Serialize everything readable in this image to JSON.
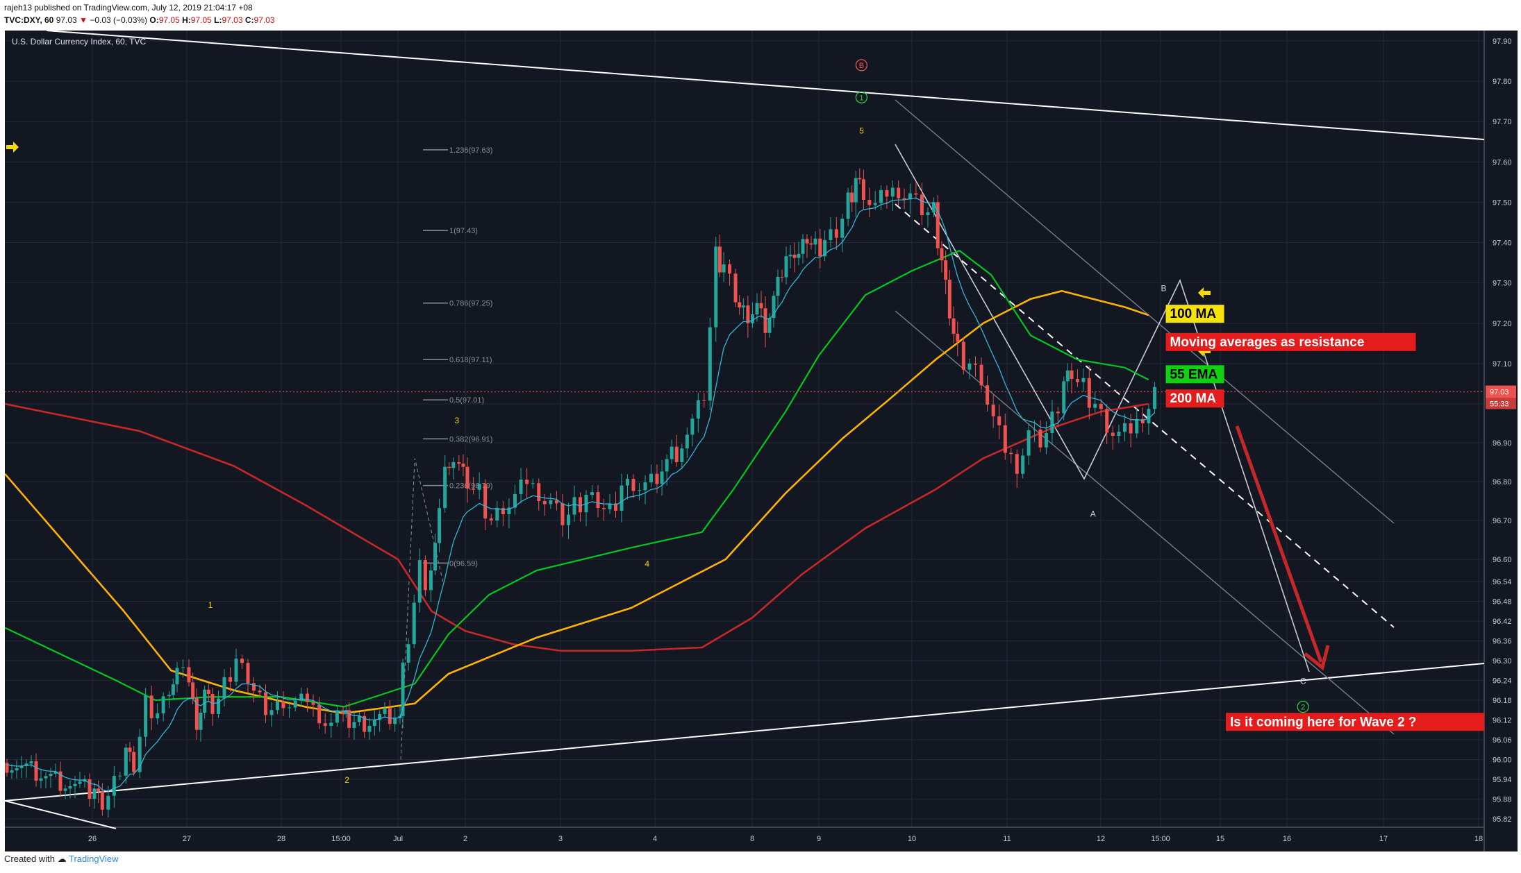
{
  "header": {
    "publisher_line": "rajeh13 published on TradingView.com, July 12, 2019 21:04:17 +08",
    "ticker": "TVC:DXY, 60",
    "last": "97.03",
    "change_arrow": "▼",
    "change": "−0.03 (−0.03%)",
    "o_label": "O:",
    "o_value": "97.05",
    "h_label": "H:",
    "h_value": "97.05",
    "l_label": "L:",
    "l_value": "97.03",
    "c_label": "C:",
    "c_value": "97.03"
  },
  "footer": {
    "created_with": "Created with",
    "brand": "TradingView"
  },
  "chart_data": {
    "type": "candlestick",
    "title": "U.S. Dollar Currency Index, 60, TVC",
    "ylim": [
      95.78,
      97.95
    ],
    "y_ticks": [
      "97.90",
      "97.80",
      "97.70",
      "97.60",
      "97.50",
      "97.40",
      "97.30",
      "97.20",
      "97.10",
      "97.00",
      "96.90",
      "96.80",
      "96.70",
      "96.60",
      "96.54",
      "96.48",
      "96.42",
      "96.36",
      "96.30",
      "96.24",
      "96.18",
      "96.12",
      "96.06",
      "96.00",
      "95.94",
      "95.88",
      "95.82"
    ],
    "x_ticks": [
      "26",
      "27",
      "28",
      "15:00",
      "Jul",
      "2",
      "3",
      "4",
      "8",
      "9",
      "10",
      "11",
      "12",
      "15:00",
      "15",
      "16",
      "17",
      "18"
    ],
    "price_label": "97.03",
    "countdown_label": "55:33",
    "colors": {
      "background": "#131722",
      "up": "#26a69a",
      "down": "#ef5350",
      "ma100": "#ffb300",
      "ema55": "#00c81e",
      "ma200": "#c62828",
      "ema_fast": "#33b5d6",
      "trendline": "#ffffff",
      "arrow": "#c62828"
    },
    "close_path": [
      [
        "06-25 20:00",
        95.99
      ],
      [
        "06-26 00:00",
        95.9
      ],
      [
        "06-26 02:00",
        95.86
      ],
      [
        "06-26 05:00",
        95.92
      ],
      [
        "06-26 08:00",
        96.03
      ],
      [
        "06-26 10:00",
        95.98
      ],
      [
        "06-26 13:00",
        96.17
      ],
      [
        "06-26 16:00",
        96.14
      ],
      [
        "06-26 19:00",
        96.22
      ],
      [
        "06-26 21:00",
        96.26
      ],
      [
        "06-27 00:00",
        96.24
      ],
      [
        "06-27 02:00",
        96.12
      ],
      [
        "06-27 04:00",
        96.2
      ],
      [
        "06-27 06:00",
        96.15
      ],
      [
        "06-27 09:00",
        96.22
      ],
      [
        "06-27 12:00",
        96.3
      ],
      [
        "06-27 15:00",
        96.25
      ],
      [
        "06-27 18:00",
        96.18
      ],
      [
        "06-27 21:00",
        96.15
      ],
      [
        "06-28 00:00",
        96.18
      ],
      [
        "06-28 03:00",
        96.16
      ],
      [
        "06-28 06:00",
        96.18
      ],
      [
        "06-28 09:00",
        96.14
      ],
      [
        "06-28 12:00",
        96.1
      ],
      [
        "06-28 15:00",
        96.15
      ],
      [
        "06-28 18:00",
        96.12
      ],
      [
        "06-28 21:00",
        96.09
      ],
      [
        "07-01 00:00",
        96.15
      ],
      [
        "07-01 01:00",
        96.27
      ],
      [
        "07-01 03:00",
        96.35
      ],
      [
        "07-01 05:00",
        96.5
      ],
      [
        "07-01 07:00",
        96.58
      ],
      [
        "07-01 09:00",
        96.52
      ],
      [
        "07-01 11:00",
        96.6
      ],
      [
        "07-01 14:00",
        96.72
      ],
      [
        "07-01 16:00",
        96.85
      ],
      [
        "07-01 19:00",
        96.82
      ],
      [
        "07-01 21:00",
        96.84
      ],
      [
        "07-02 00:00",
        96.8
      ],
      [
        "07-02 03:00",
        96.77
      ],
      [
        "07-02 06:00",
        96.7
      ],
      [
        "07-02 09:00",
        96.74
      ],
      [
        "07-02 12:00",
        96.75
      ],
      [
        "07-02 15:00",
        96.8
      ],
      [
        "07-02 18:00",
        96.78
      ],
      [
        "07-02 21:00",
        96.74
      ],
      [
        "07-03 00:00",
        96.7
      ],
      [
        "07-03 03:00",
        96.73
      ],
      [
        "07-03 06:00",
        96.76
      ],
      [
        "07-03 09:00",
        96.75
      ],
      [
        "07-03 12:00",
        96.72
      ],
      [
        "07-03 15:00",
        96.79
      ],
      [
        "07-03 18:00",
        96.8
      ],
      [
        "07-03 21:00",
        96.78
      ],
      [
        "07-04 00:00",
        96.8
      ],
      [
        "07-04 05:00",
        96.88
      ],
      [
        "07-04 09:00",
        96.95
      ],
      [
        "07-04 12:00",
        97.02
      ],
      [
        "07-04 15:00",
        97.36
      ],
      [
        "07-04 17:00",
        97.34
      ],
      [
        "07-04 20:00",
        97.27
      ],
      [
        "07-04 22:00",
        97.22
      ],
      [
        "07-08 01:00",
        97.25
      ],
      [
        "07-08 04:00",
        97.2
      ],
      [
        "07-08 07:00",
        97.25
      ],
      [
        "07-08 10:00",
        97.32
      ],
      [
        "07-08 13:00",
        97.4
      ],
      [
        "07-08 16:00",
        97.36
      ],
      [
        "07-08 19:00",
        97.41
      ],
      [
        "07-08 22:00",
        97.38
      ],
      [
        "07-09 01:00",
        97.4
      ],
      [
        "07-09 04:00",
        97.43
      ],
      [
        "07-09 07:00",
        97.5
      ],
      [
        "07-09 09:00",
        97.56
      ],
      [
        "07-09 11:00",
        97.53
      ],
      [
        "07-09 14:00",
        97.48
      ],
      [
        "07-09 17:00",
        97.52
      ],
      [
        "07-09 20:00",
        97.54
      ],
      [
        "07-09 23:00",
        97.51
      ],
      [
        "07-10 02:00",
        97.48
      ],
      [
        "07-10 05:00",
        97.47
      ],
      [
        "07-10 07:00",
        97.35
      ],
      [
        "07-10 09:00",
        97.23
      ],
      [
        "07-10 11:00",
        97.13
      ],
      [
        "07-10 14:00",
        97.1
      ],
      [
        "07-10 17:00",
        97.07
      ],
      [
        "07-10 20:00",
        96.95
      ],
      [
        "07-10 23:00",
        96.88
      ],
      [
        "07-11 02:00",
        96.85
      ],
      [
        "07-11 05:00",
        96.92
      ],
      [
        "07-11 08:00",
        96.9
      ],
      [
        "07-11 11:00",
        96.95
      ],
      [
        "07-11 14:00",
        97.05
      ],
      [
        "07-11 16:00",
        97.08
      ],
      [
        "07-11 19:00",
        97.04
      ],
      [
        "07-11 22:00",
        97.0
      ],
      [
        "07-12 01:00",
        96.95
      ],
      [
        "07-12 04:00",
        96.91
      ],
      [
        "07-12 07:00",
        96.93
      ],
      [
        "07-12 10:00",
        96.98
      ],
      [
        "07-12 13:00",
        97.03
      ]
    ],
    "ma100_path": [
      [
        "06-25 20:00",
        96.82
      ],
      [
        "06-26 08:00",
        96.45
      ],
      [
        "06-26 20:00",
        96.27
      ],
      [
        "06-27 12:00",
        96.21
      ],
      [
        "06-28 06:00",
        96.16
      ],
      [
        "06-28 18:00",
        96.14
      ],
      [
        "07-01 06:00",
        96.17
      ],
      [
        "07-01 18:00",
        96.26
      ],
      [
        "07-02 18:00",
        96.37
      ],
      [
        "07-03 18:00",
        96.46
      ],
      [
        "07-04 18:00",
        96.6
      ],
      [
        "07-08 12:00",
        96.77
      ],
      [
        "07-09 06:00",
        96.91
      ],
      [
        "07-09 18:00",
        97.01
      ],
      [
        "07-10 06:00",
        97.11
      ],
      [
        "07-10 18:00",
        97.2
      ],
      [
        "07-11 06:00",
        97.26
      ],
      [
        "07-11 14:00",
        97.28
      ],
      [
        "07-12 06:00",
        97.24
      ],
      [
        "07-12 12:00",
        97.22
      ]
    ],
    "ema55_path": [
      [
        "06-25 20:00",
        96.4
      ],
      [
        "06-26 06:00",
        96.24
      ],
      [
        "06-26 16:00",
        96.18
      ],
      [
        "06-27 06:00",
        96.19
      ],
      [
        "06-28 00:00",
        96.19
      ],
      [
        "06-28 18:00",
        96.16
      ],
      [
        "07-01 06:00",
        96.23
      ],
      [
        "07-01 18:00",
        96.38
      ],
      [
        "07-02 06:00",
        96.5
      ],
      [
        "07-02 18:00",
        96.57
      ],
      [
        "07-03 18:00",
        96.63
      ],
      [
        "07-04 12:00",
        96.67
      ],
      [
        "07-04 20:00",
        96.78
      ],
      [
        "07-08 12:00",
        96.98
      ],
      [
        "07-09 00:00",
        97.12
      ],
      [
        "07-09 12:00",
        97.27
      ],
      [
        "07-10 00:00",
        97.33
      ],
      [
        "07-10 12:00",
        97.38
      ],
      [
        "07-10 20:00",
        97.32
      ],
      [
        "07-11 06:00",
        97.17
      ],
      [
        "07-11 18:00",
        97.11
      ],
      [
        "07-12 06:00",
        97.09
      ],
      [
        "07-12 12:00",
        97.06
      ]
    ],
    "ma200_path": [
      [
        "06-25 20:00",
        97.0
      ],
      [
        "06-26 12:00",
        96.93
      ],
      [
        "06-27 12:00",
        96.84
      ],
      [
        "06-28 06:00",
        96.74
      ],
      [
        "07-01 00:00",
        96.6
      ],
      [
        "07-01 12:00",
        96.45
      ],
      [
        "07-02 00:00",
        96.39
      ],
      [
        "07-02 12:00",
        96.35
      ],
      [
        "07-03 00:00",
        96.33
      ],
      [
        "07-03 18:00",
        96.33
      ],
      [
        "07-04 12:00",
        96.34
      ],
      [
        "07-08 00:00",
        96.43
      ],
      [
        "07-08 18:00",
        96.56
      ],
      [
        "07-09 12:00",
        96.68
      ],
      [
        "07-10 06:00",
        96.78
      ],
      [
        "07-10 18:00",
        96.86
      ],
      [
        "07-11 12:00",
        96.94
      ],
      [
        "07-12 00:00",
        96.98
      ],
      [
        "07-12 12:00",
        97.0
      ]
    ],
    "fib_levels": [
      {
        "label": "1.236(97.63)",
        "value": 97.63
      },
      {
        "label": "1(97.43)",
        "value": 97.43
      },
      {
        "label": "0.786(97.25)",
        "value": 97.25
      },
      {
        "label": "0.618(97.11)",
        "value": 97.11
      },
      {
        "label": "0.5(97.01)",
        "value": 97.01
      },
      {
        "label": "0.382(96.91)",
        "value": 96.91
      },
      {
        "label": "0.236(96.79)",
        "value": 96.79
      },
      {
        "label": "0(96.59)",
        "value": 96.59
      }
    ],
    "wave_labels": [
      {
        "text": "1",
        "at": [
          "06-27 06:00",
          96.46
        ]
      },
      {
        "text": "2",
        "at": [
          "06-28 21:00",
          95.93
        ]
      },
      {
        "text": "3",
        "at": [
          "07-01 21:00",
          96.95
        ]
      },
      {
        "text": "4",
        "at": [
          "07-03 22:00",
          96.58
        ]
      },
      {
        "text": "5",
        "at": [
          "07-09 11:00",
          97.67
        ]
      },
      {
        "text": "A",
        "at": [
          "07-11 22:00",
          96.71
        ]
      },
      {
        "text": "B",
        "at": [
          "07-12 18:00",
          97.28
        ]
      },
      {
        "text": "C",
        "at": [
          "07-16 04:00",
          96.23
        ]
      }
    ],
    "circled_labels": [
      {
        "text": "B",
        "color": "#ef5350",
        "at": [
          "07-09 11:00",
          97.84
        ]
      },
      {
        "text": "1",
        "color": "#2ecc40",
        "at": [
          "07-09 11:00",
          97.76
        ]
      },
      {
        "text": "2",
        "color": "#2ecc40",
        "at": [
          "07-16 04:00",
          96.16
        ]
      }
    ],
    "annotations": [
      {
        "text": "100 MA",
        "style": "yellow",
        "at": [
          "07-12 20:00",
          97.22
        ]
      },
      {
        "text": "Moving averages as resistance",
        "style": "red",
        "at": [
          "07-12 20:00",
          97.15
        ]
      },
      {
        "text": "55 EMA",
        "style": "green",
        "at": [
          "07-12 20:00",
          97.07
        ]
      },
      {
        "text": "200 MA",
        "style": "red",
        "at": [
          "07-12 20:00",
          97.01
        ]
      },
      {
        "text": "Is it coming here for Wave 2 ?",
        "style": "red",
        "at": [
          "07-15 02:00",
          96.11
        ]
      }
    ]
  }
}
